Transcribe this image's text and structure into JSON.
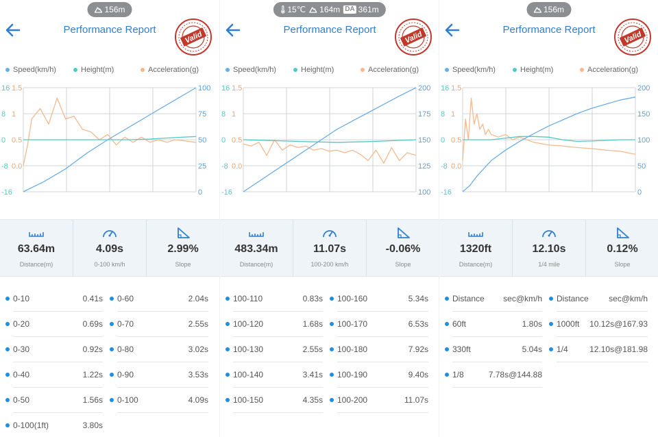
{
  "colors": {
    "speed": "#6aaee6",
    "height": "#4ecbc4",
    "acceleration": "#f4b98d",
    "title": "#2f7fcf",
    "pill": "#8b8f92",
    "stamp": "#c0392b"
  },
  "panels": [
    {
      "status": {
        "altitude": "156m"
      },
      "title": "Performance Report",
      "stamp_text": "Valid",
      "legend": [
        "Speed(km/h)",
        "Height(m)",
        "Acceleration(g)"
      ],
      "chart_data": {
        "type": "line",
        "height_axis_ticks": [
          "16",
          "8",
          "0",
          "-8",
          "-16"
        ],
        "height_range": [
          -16,
          16
        ],
        "accel_axis_ticks": [
          "1.5",
          "1",
          "0.5",
          "0.0"
        ],
        "accel_range": [
          -0.5,
          1.5
        ],
        "speed_axis_ticks": [
          "100",
          "75",
          "50",
          "25",
          "0"
        ],
        "speed_range": [
          0,
          100
        ],
        "grid": true,
        "series": [
          {
            "name": "Speed(km/h)",
            "axis": "speed",
            "x": [
              0,
              0.5,
              1,
              1.5,
              2,
              2.5,
              3,
              3.5,
              4.09
            ],
            "values": [
              0,
              10,
              22,
              37,
              50,
              62,
              74,
              86,
              100
            ]
          },
          {
            "name": "Height(m)",
            "axis": "height",
            "x": [
              0,
              0.5,
              1,
              1.5,
              2,
              2.5,
              3,
              3.5,
              4.09
            ],
            "values": [
              0,
              0,
              0,
              0,
              0,
              0,
              0.2,
              0.6,
              1
            ]
          },
          {
            "name": "Acceleration(g)",
            "axis": "accel",
            "x": [
              0,
              0.1,
              0.2,
              0.4,
              0.6,
              0.8,
              1.0,
              1.2,
              1.4,
              1.6,
              1.8,
              2.0,
              2.2,
              2.4,
              2.6,
              2.8,
              3.0,
              3.2,
              3.4,
              3.6,
              3.8,
              4.09
            ],
            "values": [
              0.0,
              0.4,
              0.9,
              1.1,
              0.8,
              1.3,
              0.9,
              0.95,
              0.7,
              0.65,
              0.5,
              0.6,
              0.4,
              0.55,
              0.45,
              0.55,
              0.45,
              0.5,
              0.45,
              0.5,
              0.48,
              0.45
            ]
          }
        ]
      },
      "stats": [
        {
          "icon": "ruler-icon",
          "value": "63.64m",
          "label": "Distance(m)"
        },
        {
          "icon": "speedometer-icon",
          "value": "4.09s",
          "label": "0-100 km/h"
        },
        {
          "icon": "slope-icon",
          "value": "2.99%",
          "label": "Slope"
        }
      ],
      "splits": [
        [
          {
            "k": "0-10",
            "v": "0.41s"
          },
          {
            "k": "0-60",
            "v": "2.04s"
          }
        ],
        [
          {
            "k": "0-20",
            "v": "0.69s"
          },
          {
            "k": "0-70",
            "v": "2.55s"
          }
        ],
        [
          {
            "k": "0-30",
            "v": "0.92s"
          },
          {
            "k": "0-80",
            "v": "3.02s"
          }
        ],
        [
          {
            "k": "0-40",
            "v": "1.22s"
          },
          {
            "k": "0-90",
            "v": "3.53s"
          }
        ],
        [
          {
            "k": "0-50",
            "v": "1.56s"
          },
          {
            "k": "0-100",
            "v": "4.09s"
          }
        ],
        [
          {
            "k": "0-100(1ft)",
            "v": "3.80s"
          }
        ]
      ]
    },
    {
      "status": {
        "temperature": "15℃",
        "altitude": "164m",
        "density_altitude_badge": "DA",
        "density_altitude": "361m"
      },
      "title": "Performance Report",
      "stamp_text": "Valid",
      "legend": [
        "Speed(km/h)",
        "Height(m)",
        "Acceleration(g)"
      ],
      "chart_data": {
        "type": "line",
        "height_axis_ticks": [
          "16",
          "8",
          "0",
          "-8",
          "-16"
        ],
        "height_range": [
          -16,
          16
        ],
        "accel_axis_ticks": [
          "1.5",
          "1",
          "0.5",
          "0.0"
        ],
        "accel_range": [
          -0.5,
          1.5
        ],
        "speed_axis_ticks": [
          "200",
          "175",
          "150",
          "125",
          "100"
        ],
        "speed_range": [
          100,
          200
        ],
        "grid": true,
        "series": [
          {
            "name": "Speed(km/h)",
            "axis": "speed",
            "x": [
              0,
              1,
              2,
              3,
              4,
              5,
              6,
              7,
              8,
              9,
              10,
              11.07
            ],
            "values": [
              100,
              110,
              120,
              130,
              140,
              150,
              160,
              168,
              176,
              184,
              192,
              200
            ]
          },
          {
            "name": "Height(m)",
            "axis": "height",
            "x": [
              0,
              2,
              4,
              6,
              8,
              10,
              11.07
            ],
            "values": [
              0,
              -0.3,
              -0.6,
              -0.8,
              -0.6,
              -0.2,
              0
            ]
          },
          {
            "name": "Acceleration(g)",
            "axis": "accel",
            "x": [
              0,
              0.5,
              1,
              1.5,
              2,
              2.5,
              3,
              3.5,
              4,
              4.5,
              5,
              5.5,
              6,
              6.5,
              7,
              7.5,
              8,
              8.5,
              9,
              9.5,
              10,
              10.5,
              11.07
            ],
            "values": [
              0.42,
              0.38,
              0.45,
              0.2,
              0.5,
              0.3,
              0.4,
              0.35,
              0.38,
              0.3,
              0.33,
              0.28,
              0.3,
              0.25,
              0.3,
              0.22,
              0.1,
              0.3,
              0.05,
              0.35,
              0.1,
              0.25,
              0.2
            ]
          }
        ]
      },
      "stats": [
        {
          "icon": "ruler-icon",
          "value": "483.34m",
          "label": "Distance(m)"
        },
        {
          "icon": "speedometer-icon",
          "value": "11.07s",
          "label": "100-200 km/h"
        },
        {
          "icon": "slope-icon",
          "value": "-0.06%",
          "label": "Slope"
        }
      ],
      "splits": [
        [
          {
            "k": "100-110",
            "v": "0.83s"
          },
          {
            "k": "100-160",
            "v": "5.34s"
          }
        ],
        [
          {
            "k": "100-120",
            "v": "1.68s"
          },
          {
            "k": "100-170",
            "v": "6.53s"
          }
        ],
        [
          {
            "k": "100-130",
            "v": "2.55s"
          },
          {
            "k": "100-180",
            "v": "7.92s"
          }
        ],
        [
          {
            "k": "100-140",
            "v": "3.41s"
          },
          {
            "k": "100-190",
            "v": "9.40s"
          }
        ],
        [
          {
            "k": "100-150",
            "v": "4.35s"
          },
          {
            "k": "100-200",
            "v": "11.07s"
          }
        ]
      ]
    },
    {
      "status": {
        "altitude": "156m"
      },
      "title": "Performance Report",
      "stamp_text": "Valid",
      "legend": [
        "Speed(km/h)",
        "Height(m)",
        "Acceleration(g)"
      ],
      "chart_data": {
        "type": "line",
        "height_axis_ticks": [
          "16",
          "8",
          "0",
          "-8",
          "-16"
        ],
        "height_range": [
          -16,
          16
        ],
        "accel_axis_ticks": [
          "1.5",
          "1",
          "0.5",
          "0.0"
        ],
        "accel_range": [
          -0.5,
          1.5
        ],
        "speed_axis_ticks": [
          "200",
          "150",
          "100",
          "50",
          "0"
        ],
        "speed_range": [
          0,
          200
        ],
        "grid": true,
        "series": [
          {
            "name": "Speed(km/h)",
            "axis": "speed",
            "x": [
              0,
              0.5,
              1,
              1.5,
              2,
              3,
              4,
              5,
              6,
              7,
              8,
              9,
              10,
              11,
              12.1
            ],
            "values": [
              0,
              12,
              30,
              45,
              60,
              80,
              97,
              112,
              126,
              138,
              150,
              160,
              168,
              176,
              182
            ]
          },
          {
            "name": "Height(m)",
            "axis": "height",
            "x": [
              0,
              1,
              2,
              3,
              4,
              5,
              6,
              7,
              8,
              9,
              10,
              11,
              12.1
            ],
            "values": [
              0,
              0,
              0,
              0.5,
              1,
              1,
              0.8,
              0,
              -0.5,
              -0.4,
              -0.2,
              0,
              0
            ]
          },
          {
            "name": "Acceleration(g)",
            "axis": "accel",
            "x": [
              0,
              0.2,
              0.4,
              0.6,
              0.8,
              1.0,
              1.2,
              1.4,
              1.6,
              1.8,
              2.0,
              2.5,
              3,
              3.5,
              4,
              5,
              6,
              7,
              8,
              9,
              10,
              11,
              12.1
            ],
            "values": [
              0.1,
              0.9,
              0.5,
              1.3,
              0.8,
              1.0,
              0.7,
              0.8,
              0.6,
              0.7,
              0.6,
              0.55,
              0.6,
              0.5,
              0.55,
              0.45,
              0.4,
              0.38,
              0.35,
              0.33,
              0.3,
              0.28,
              0.22
            ]
          }
        ]
      },
      "stats": [
        {
          "icon": "ruler-icon",
          "value": "1320ft",
          "label": "Distance(m)"
        },
        {
          "icon": "speedometer-icon",
          "value": "12.10s",
          "label": "1/4 mile"
        },
        {
          "icon": "slope-icon",
          "value": "0.12%",
          "label": "Slope"
        }
      ],
      "splits": [
        [
          {
            "k": "Distance",
            "v": "sec@km/h"
          },
          {
            "k": "Distance",
            "v": "sec@km/h"
          }
        ],
        [
          {
            "k": "60ft",
            "v": "1.80s"
          },
          {
            "k": "1000ft",
            "v": "10.12s@167.93"
          }
        ],
        [
          {
            "k": "330ft",
            "v": "5.04s"
          },
          {
            "k": "1/4",
            "v": "12.10s@181.98"
          }
        ],
        [
          {
            "k": "1/8",
            "v": "7.78s@144.88"
          }
        ]
      ]
    }
  ]
}
